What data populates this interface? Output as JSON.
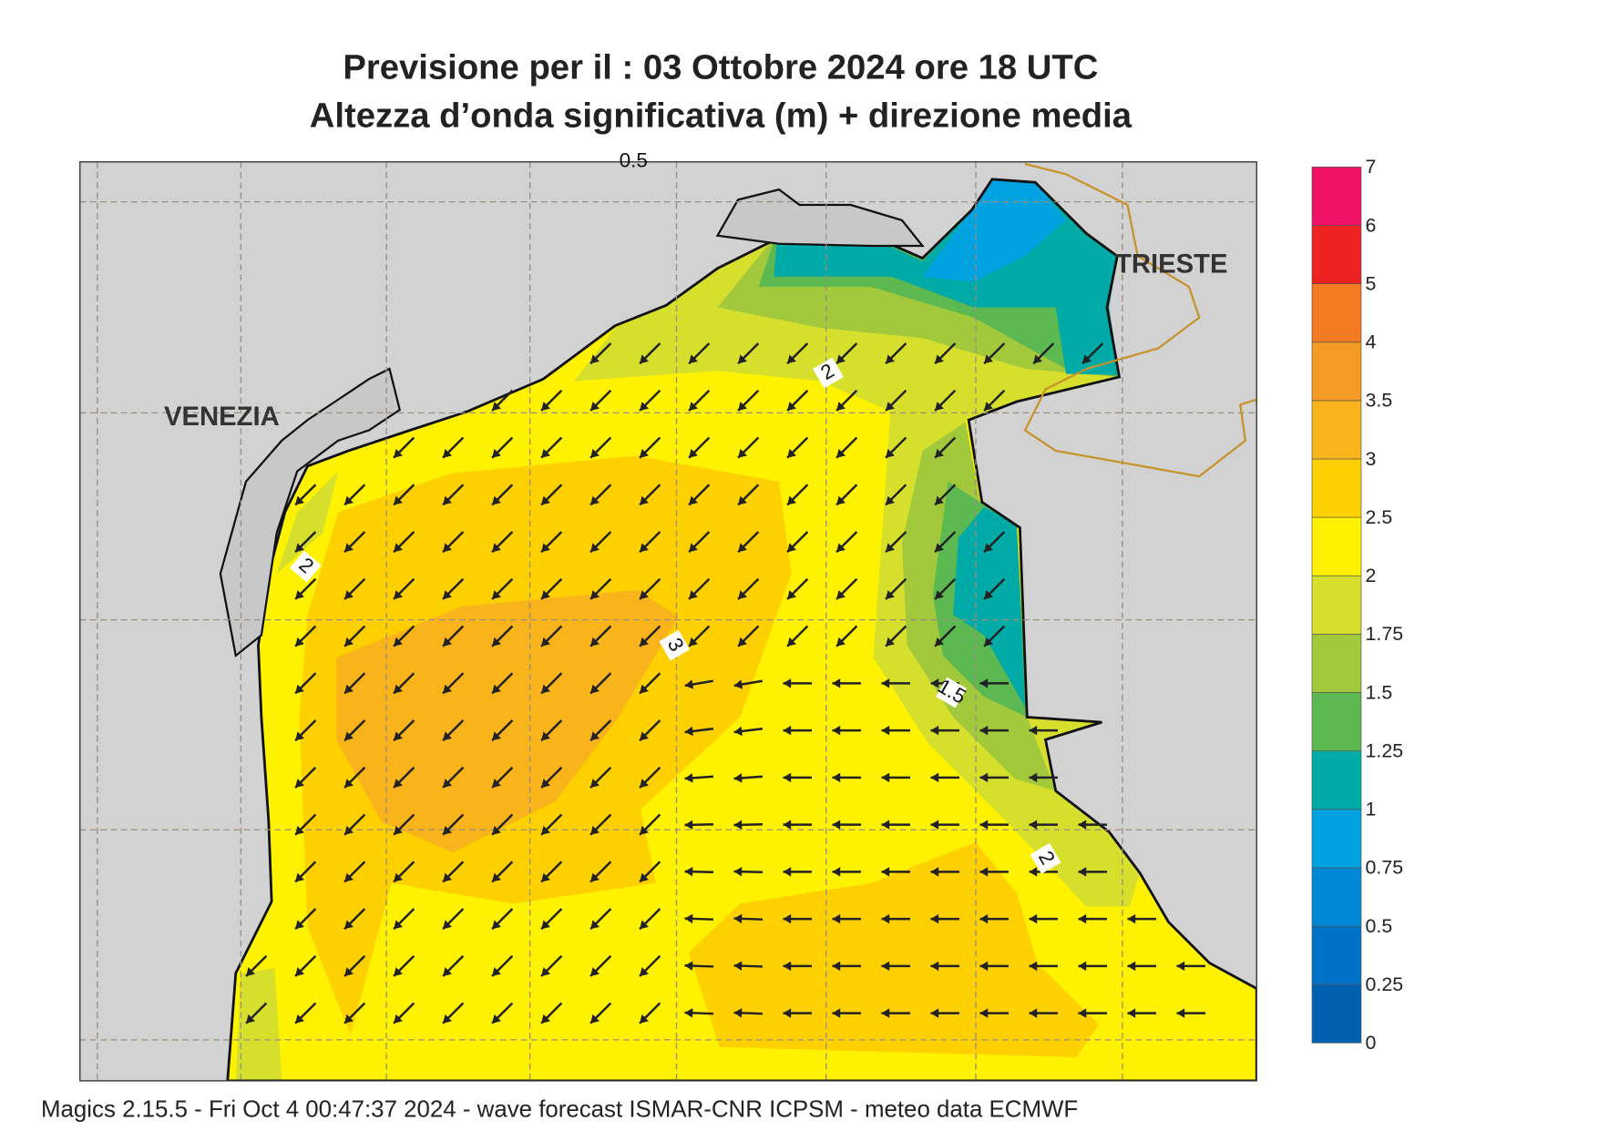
{
  "title": [
    "Previsione per il  :  03  Ottobre  2024   ore 18 UTC",
    "Altezza d’onda significativa (m) + direzione media"
  ],
  "colorbar": {
    "levels": [
      0,
      0.25,
      0.5,
      0.75,
      1,
      1.25,
      1.5,
      1.75,
      2,
      2.5,
      3,
      3.5,
      4,
      5,
      6,
      7
    ],
    "colors": [
      "#0060b0",
      "#0072c6",
      "#0088d6",
      "#00a2e0",
      "#00aaa6",
      "#5cb850",
      "#a2c83c",
      "#d6e02c",
      "#fff200",
      "#ffd000",
      "#f9b31b",
      "#f59a22",
      "#f47b22",
      "#ee2222",
      "#ee1166"
    ]
  },
  "places": [
    "VENEZIA",
    "TRIESTE"
  ],
  "contour_labels": [
    0.5,
    2,
    2,
    3,
    1.5,
    2
  ],
  "footer": "Magics 2.15.5 - Fri Oct  4 00:47:37 2024 - wave forecast  ISMAR-CNR  ICPSM - meteo data   ECMWF"
}
